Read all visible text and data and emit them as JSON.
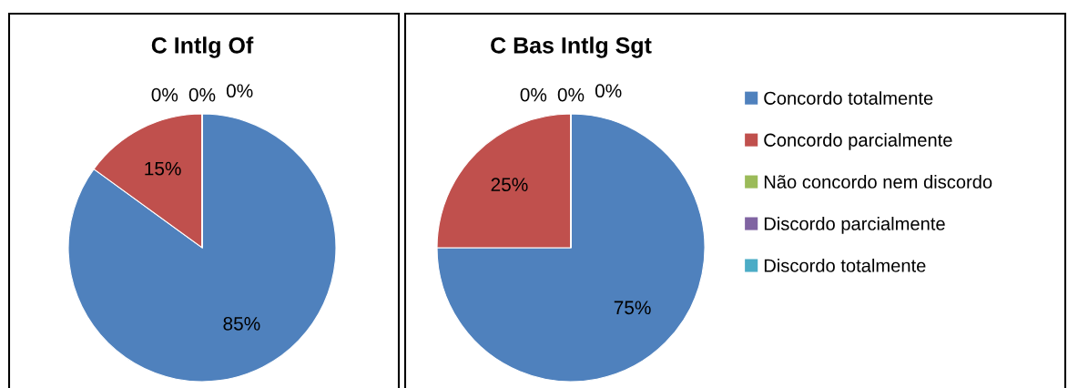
{
  "chart_data": [
    {
      "type": "pie",
      "title": "C Intlg Of",
      "categories": [
        null,
        null,
        null,
        null,
        null
      ],
      "values": [
        85,
        15,
        0,
        0,
        0
      ],
      "colors": [
        "#4f81bd",
        "#c0504d",
        "#9bbb59",
        "#8064a2",
        "#4bacc6"
      ],
      "value_labels": [
        "85%",
        "15%",
        "0%",
        "0%",
        "0%"
      ]
    },
    {
      "type": "pie",
      "title": "C Bas Intlg Sgt",
      "categories": [
        "Concordo totalmente",
        "Concordo parcialmente",
        "Não concordo nem discordo",
        "Discordo parcialmente",
        "Discordo totalmente"
      ],
      "values": [
        75,
        25,
        0,
        0,
        0
      ],
      "colors": [
        "#4f81bd",
        "#c0504d",
        "#9bbb59",
        "#8064a2",
        "#4bacc6"
      ],
      "value_labels": [
        "75%",
        "25%",
        "0%",
        "0%",
        "0%"
      ],
      "legend": "right"
    }
  ]
}
